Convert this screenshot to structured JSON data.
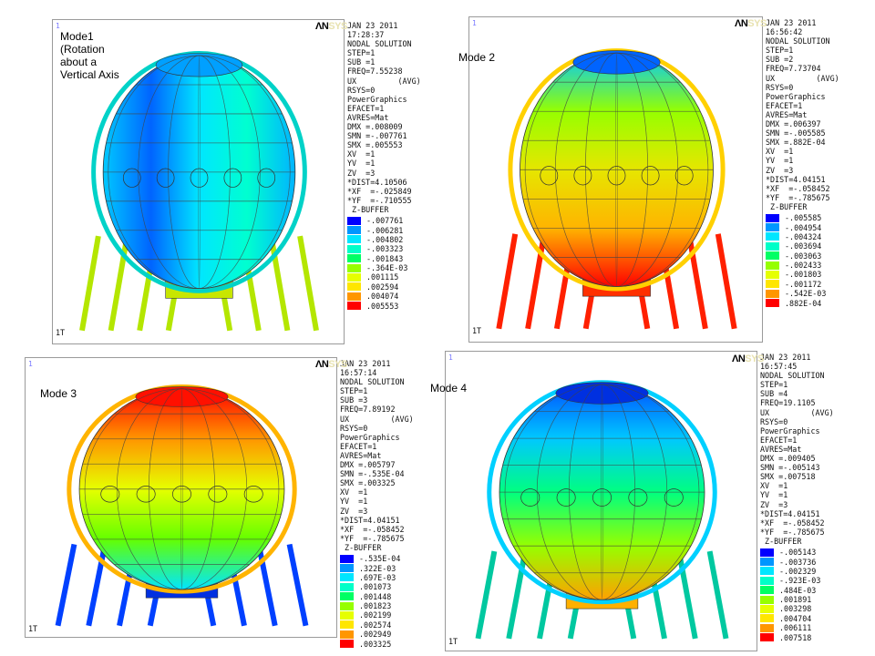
{
  "colors": [
    "#0000ff",
    "#005bff",
    "#00b4ff",
    "#00ffff",
    "#00ffb4",
    "#00ff5b",
    "#5bff00",
    "#b4ff00",
    "#ffff00",
    "#ffb400",
    "#ff5b00",
    "#ff0000"
  ],
  "legend_colors": [
    "#0000ff",
    "#0096ff",
    "#00e6ff",
    "#00ffc8",
    "#00ff64",
    "#96ff00",
    "#e6ff00",
    "#ffe600",
    "#ff9600",
    "#ff0000"
  ],
  "panels": [
    {
      "label": "Mode1\n(Rotation\nabout a\nVertical Axis",
      "ansys_a": "ΛN",
      "ansys_b": "SYS",
      "index": "1",
      "bottom": "1T",
      "info": [
        "JAN 23 2011",
        "17:28:37",
        "NODAL SOLUTION",
        "STEP=1",
        "SUB =1",
        "FREQ=7.55238",
        "UX         (AVG)",
        "RSYS=0",
        "PowerGraphics",
        "EFACET=1",
        "AVRES=Mat",
        "DMX =.008009",
        "SMN =-.007761",
        "SMX =.005553",
        "",
        "XV  =1",
        "YV  =1",
        "ZV  =3",
        "*DIST=4.10506",
        "*XF  =-.025849",
        "*YF  =-.710555",
        " Z-BUFFER"
      ],
      "legend": [
        "-.007761",
        "-.006281",
        "-.004802",
        "-.003323",
        "-.001843",
        "-.364E-03",
        ".001115",
        ".002594",
        ".004074",
        ".005553"
      ]
    },
    {
      "label": "Mode 2",
      "ansys_a": "ΛN",
      "ansys_b": "SYS",
      "index": "1",
      "bottom": "1T",
      "info": [
        "JAN 23 2011",
        "16:56:42",
        "NODAL SOLUTION",
        "STEP=1",
        "SUB =2",
        "FREQ=7.73704",
        "UX         (AVG)",
        "RSYS=0",
        "PowerGraphics",
        "EFACET=1",
        "AVRES=Mat",
        "DMX =.006397",
        "SMN =-.005585",
        "SMX =.882E-04",
        "",
        "XV  =1",
        "YV  =1",
        "ZV  =3",
        "*DIST=4.04151",
        "*XF  =-.058452",
        "*YF  =-.785675",
        " Z-BUFFER"
      ],
      "legend": [
        "-.005585",
        "-.004954",
        "-.004324",
        "-.003694",
        "-.003063",
        "-.002433",
        "-.001803",
        "-.001172",
        "-.542E-03",
        ".882E-04"
      ]
    },
    {
      "label": "Mode 3",
      "ansys_a": "ΛN",
      "ansys_b": "SYS",
      "index": "1",
      "bottom": "1T",
      "info": [
        "JAN 23 2011",
        "16:57:14",
        "NODAL SOLUTION",
        "STEP=1",
        "SUB =3",
        "FREQ=7.89192",
        "UX         (AVG)",
        "RSYS=0",
        "PowerGraphics",
        "EFACET=1",
        "AVRES=Mat",
        "DMX =.005797",
        "SMN =-.535E-04",
        "SMX =.003325",
        "",
        "XV  =1",
        "YV  =1",
        "ZV  =3",
        "*DIST=4.04151",
        "*XF  =-.058452",
        "*YF  =-.785675",
        " Z-BUFFER"
      ],
      "legend": [
        "-.535E-04",
        ".322E-03",
        ".697E-03",
        ".001073",
        ".001448",
        ".001823",
        ".002199",
        ".002574",
        ".002949",
        ".003325"
      ]
    },
    {
      "label": "Mode 4",
      "ansys_a": "ΛN",
      "ansys_b": "SYS",
      "index": "1",
      "bottom": "1T",
      "info": [
        "JAN 23 2011",
        "16:57:45",
        "NODAL SOLUTION",
        "STEP=1",
        "SUB =4",
        "FREQ=19.1105",
        "UX         (AVG)",
        "RSYS=0",
        "PowerGraphics",
        "EFACET=1",
        "AVRES=Mat",
        "DMX =.009405",
        "SMN =-.005143",
        "SMX =.007518",
        "",
        "XV  =1",
        "YV  =1",
        "ZV  =3",
        "*DIST=4.04151",
        "*XF  =-.058452",
        "*YF  =-.785675",
        " Z-BUFFER"
      ],
      "legend": [
        "-.005143",
        "-.003736",
        "-.002329",
        "-.923E-03",
        ".484E-03",
        ".001891",
        ".003298",
        ".004704",
        ".006111",
        ".007518"
      ]
    }
  ]
}
